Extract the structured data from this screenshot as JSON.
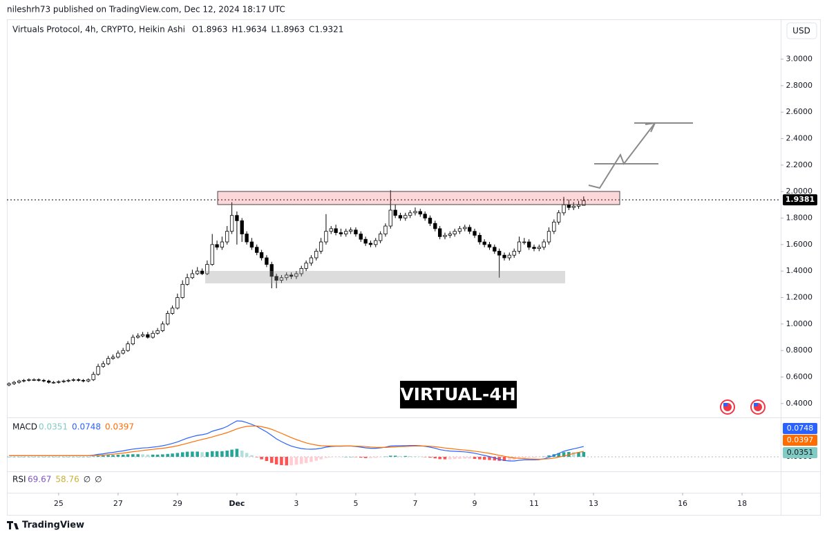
{
  "header": {
    "published": "nileshrh73 published on TradingView.com, Dec 12, 2024 18:17 UTC",
    "brand": "TradingView"
  },
  "chart_data": {
    "type": "candlestick",
    "legend": "Virtuals Protocol, 4h, CRYPTO, Heikin Ashi",
    "ohlc_labels": [
      "O1.8963",
      "H1.9634",
      "L1.8963",
      "C1.9321"
    ],
    "currency": "USD",
    "annotation": "VIRTUAL-4H",
    "up_color": "#ffffff",
    "down_color": "#000000",
    "edge_color": "#000000",
    "last_price": 1.9381,
    "xlim": [
      23.26,
      49.3
    ],
    "xticks": [
      25,
      27,
      29,
      {
        "value": 31,
        "label": "Dec"
      },
      {
        "value": 33,
        "label": "3"
      },
      {
        "value": 35,
        "label": "5"
      },
      {
        "value": 37,
        "label": "7"
      },
      {
        "value": 39,
        "label": "9"
      },
      {
        "value": 41,
        "label": "11"
      },
      {
        "value": 43,
        "label": "13"
      },
      {
        "value": 46,
        "label": "16"
      },
      {
        "value": 48,
        "label": "18"
      }
    ],
    "ylim": [
      0.3,
      3.29
    ],
    "yticks": [
      {
        "value": 0.4,
        "label": "0.4000"
      },
      {
        "value": 0.6,
        "label": "0.6000"
      },
      {
        "value": 0.8,
        "label": "0.8000"
      },
      {
        "value": 1.0,
        "label": "1.0000"
      },
      {
        "value": 1.2,
        "label": "1.2000"
      },
      {
        "value": 1.4,
        "label": "1.4000"
      },
      {
        "value": 1.6,
        "label": "1.6000"
      },
      {
        "value": 1.8,
        "label": "1.8000"
      },
      {
        "value": 2.0,
        "label": "2.0000"
      },
      {
        "value": 2.2,
        "label": "2.2000"
      },
      {
        "value": 2.4,
        "label": "2.4000"
      },
      {
        "value": 2.6,
        "label": "2.6000"
      },
      {
        "value": 2.8,
        "label": "2.8000"
      },
      {
        "value": 3.0,
        "label": "3.0000"
      }
    ],
    "x": [
      23.33,
      23.5,
      23.67,
      23.83,
      24,
      24.17,
      24.33,
      24.5,
      24.67,
      24.83,
      25,
      25.17,
      25.33,
      25.5,
      25.67,
      25.83,
      26,
      26.17,
      26.33,
      26.5,
      26.67,
      26.83,
      27,
      27.17,
      27.33,
      27.5,
      27.67,
      27.83,
      28,
      28.17,
      28.33,
      28.5,
      28.67,
      28.83,
      29,
      29.17,
      29.33,
      29.5,
      29.67,
      29.83,
      30,
      30.17,
      30.33,
      30.5,
      30.67,
      30.83,
      31,
      31.17,
      31.33,
      31.5,
      31.67,
      31.83,
      32,
      32.17,
      32.33,
      32.5,
      32.67,
      32.83,
      33,
      33.17,
      33.33,
      33.5,
      33.67,
      33.83,
      34,
      34.17,
      34.33,
      34.5,
      34.67,
      34.83,
      35,
      35.17,
      35.33,
      35.5,
      35.67,
      35.83,
      36,
      36.17,
      36.33,
      36.5,
      36.67,
      36.83,
      37,
      37.17,
      37.33,
      37.5,
      37.67,
      37.83,
      38,
      38.17,
      38.33,
      38.5,
      38.67,
      38.83,
      39,
      39.17,
      39.33,
      39.5,
      39.67,
      39.83,
      40,
      40.17,
      40.33,
      40.5,
      40.67,
      40.83,
      41,
      41.17,
      41.33,
      41.5,
      41.67,
      41.83,
      42,
      42.17,
      42.33,
      42.5,
      42.67
    ],
    "open": [
      0.54,
      0.55,
      0.56,
      0.57,
      0.575,
      0.58,
      0.58,
      0.575,
      0.57,
      0.56,
      0.56,
      0.565,
      0.57,
      0.575,
      0.58,
      0.575,
      0.57,
      0.58,
      0.62,
      0.68,
      0.7,
      0.74,
      0.75,
      0.78,
      0.8,
      0.85,
      0.9,
      0.91,
      0.92,
      0.9,
      0.93,
      0.95,
      1.0,
      1.08,
      1.12,
      1.2,
      1.3,
      1.35,
      1.38,
      1.4,
      1.38,
      1.45,
      1.6,
      1.58,
      1.62,
      1.7,
      1.82,
      1.78,
      1.68,
      1.62,
      1.58,
      1.54,
      1.5,
      1.45,
      1.36,
      1.33,
      1.35,
      1.37,
      1.36,
      1.38,
      1.42,
      1.46,
      1.5,
      1.55,
      1.62,
      1.7,
      1.72,
      1.69,
      1.68,
      1.7,
      1.71,
      1.68,
      1.64,
      1.61,
      1.6,
      1.63,
      1.68,
      1.74,
      1.86,
      1.82,
      1.8,
      1.82,
      1.84,
      1.85,
      1.83,
      1.8,
      1.76,
      1.72,
      1.66,
      1.67,
      1.68,
      1.7,
      1.72,
      1.73,
      1.7,
      1.67,
      1.62,
      1.6,
      1.58,
      1.55,
      1.52,
      1.5,
      1.52,
      1.55,
      1.62,
      1.62,
      1.58,
      1.57,
      1.58,
      1.62,
      1.7,
      1.77,
      1.84,
      1.9,
      1.88,
      1.89,
      1.8963
    ],
    "high": [
      0.56,
      0.57,
      0.58,
      0.585,
      0.59,
      0.59,
      0.59,
      0.585,
      0.58,
      0.57,
      0.575,
      0.58,
      0.585,
      0.59,
      0.59,
      0.585,
      0.59,
      0.64,
      0.7,
      0.72,
      0.76,
      0.77,
      0.8,
      0.82,
      0.87,
      0.92,
      0.93,
      0.94,
      0.94,
      0.95,
      0.97,
      1.02,
      1.1,
      1.14,
      1.23,
      1.33,
      1.38,
      1.41,
      1.43,
      1.42,
      1.48,
      1.68,
      1.63,
      1.66,
      1.74,
      1.92,
      1.85,
      1.8,
      1.7,
      1.65,
      1.6,
      1.56,
      1.52,
      1.47,
      1.38,
      1.37,
      1.39,
      1.39,
      1.4,
      1.44,
      1.48,
      1.52,
      1.57,
      1.65,
      1.83,
      1.74,
      1.75,
      1.72,
      1.72,
      1.73,
      1.73,
      1.7,
      1.66,
      1.63,
      1.65,
      1.7,
      1.76,
      2.01,
      1.9,
      1.84,
      1.84,
      1.86,
      1.88,
      1.87,
      1.85,
      1.82,
      1.78,
      1.74,
      1.69,
      1.7,
      1.72,
      1.74,
      1.75,
      1.75,
      1.72,
      1.69,
      1.64,
      1.62,
      1.6,
      1.57,
      1.54,
      1.54,
      1.57,
      1.66,
      1.65,
      1.64,
      1.6,
      1.6,
      1.64,
      1.73,
      1.79,
      1.86,
      1.96,
      1.94,
      1.92,
      1.93,
      1.9634
    ],
    "low": [
      0.53,
      0.54,
      0.55,
      0.56,
      0.565,
      0.57,
      0.565,
      0.56,
      0.55,
      0.55,
      0.55,
      0.555,
      0.56,
      0.565,
      0.565,
      0.56,
      0.56,
      0.57,
      0.61,
      0.67,
      0.69,
      0.73,
      0.74,
      0.77,
      0.79,
      0.84,
      0.89,
      0.9,
      0.89,
      0.89,
      0.92,
      0.94,
      0.99,
      1.07,
      1.11,
      1.19,
      1.29,
      1.34,
      1.37,
      1.37,
      1.37,
      1.44,
      1.56,
      1.56,
      1.6,
      1.68,
      1.6,
      1.62,
      1.6,
      1.56,
      1.52,
      1.48,
      1.43,
      1.27,
      1.27,
      1.31,
      1.33,
      1.34,
      1.34,
      1.36,
      1.4,
      1.44,
      1.48,
      1.53,
      1.6,
      1.68,
      1.67,
      1.66,
      1.66,
      1.68,
      1.66,
      1.62,
      1.59,
      1.58,
      1.58,
      1.61,
      1.66,
      1.72,
      1.8,
      1.78,
      1.78,
      1.8,
      1.82,
      1.81,
      1.78,
      1.74,
      1.7,
      1.64,
      1.64,
      1.65,
      1.66,
      1.68,
      1.7,
      1.68,
      1.65,
      1.6,
      1.58,
      1.56,
      1.53,
      1.35,
      1.48,
      1.48,
      1.5,
      1.53,
      1.6,
      1.56,
      1.55,
      1.55,
      1.56,
      1.6,
      1.68,
      1.75,
      1.82,
      1.86,
      1.86,
      1.87,
      1.8963
    ],
    "close": [
      0.55,
      0.56,
      0.57,
      0.575,
      0.58,
      0.58,
      0.575,
      0.57,
      0.56,
      0.56,
      0.565,
      0.57,
      0.575,
      0.58,
      0.575,
      0.57,
      0.58,
      0.62,
      0.68,
      0.7,
      0.74,
      0.75,
      0.78,
      0.8,
      0.85,
      0.9,
      0.91,
      0.92,
      0.9,
      0.93,
      0.95,
      1.0,
      1.08,
      1.12,
      1.2,
      1.3,
      1.35,
      1.38,
      1.4,
      1.38,
      1.45,
      1.6,
      1.58,
      1.62,
      1.7,
      1.82,
      1.78,
      1.68,
      1.62,
      1.58,
      1.54,
      1.5,
      1.45,
      1.36,
      1.33,
      1.35,
      1.37,
      1.36,
      1.38,
      1.42,
      1.46,
      1.5,
      1.55,
      1.62,
      1.7,
      1.72,
      1.69,
      1.68,
      1.7,
      1.71,
      1.68,
      1.64,
      1.61,
      1.6,
      1.63,
      1.68,
      1.74,
      1.86,
      1.82,
      1.8,
      1.82,
      1.84,
      1.85,
      1.83,
      1.8,
      1.76,
      1.72,
      1.66,
      1.67,
      1.68,
      1.7,
      1.72,
      1.73,
      1.7,
      1.67,
      1.62,
      1.6,
      1.58,
      1.55,
      1.52,
      1.5,
      1.52,
      1.55,
      1.62,
      1.62,
      1.58,
      1.57,
      1.58,
      1.62,
      1.7,
      1.77,
      1.84,
      1.9,
      1.88,
      1.89,
      1.9,
      1.9321
    ],
    "macd": {
      "label": "MACD",
      "legend_values": [
        0.0351,
        0.0748,
        0.0397
      ],
      "legend_colors": [
        "#80cbc4",
        "#2962ff",
        "#ff6d00"
      ],
      "ylim": [
        -0.1,
        0.275
      ],
      "yticks": [
        {
          "value": 0,
          "label": "0.0000"
        }
      ],
      "series": [
        {
          "type": "bar",
          "colors": [
            "#26a69a",
            "#b2dfdb",
            "#ff5252",
            "#ffcdd2"
          ],
          "values": [
            0,
            0,
            0,
            0,
            0,
            0,
            0,
            0,
            0,
            0,
            0,
            0,
            0,
            0,
            0,
            0,
            0,
            0.003,
            0.007,
            0.009,
            0.012,
            0.013,
            0.015,
            0.016,
            0.018,
            0.019,
            0.019,
            0.018,
            0.016,
            0.016,
            0.016,
            0.018,
            0.021,
            0.024,
            0.028,
            0.033,
            0.037,
            0.038,
            0.038,
            0.034,
            0.034,
            0.041,
            0.041,
            0.041,
            0.045,
            0.052,
            0.058,
            0.045,
            0.028,
            0.012,
            -0.003,
            -0.018,
            -0.03,
            -0.044,
            -0.055,
            -0.06,
            -0.062,
            -0.061,
            -0.057,
            -0.052,
            -0.045,
            -0.037,
            -0.028,
            -0.018,
            -0.008,
            -0.003,
            -0.001,
            -0.001,
            0,
            0,
            -0.002,
            -0.006,
            -0.009,
            -0.009,
            -0.007,
            -0.003,
            0.002,
            0.008,
            0.008,
            0.006,
            0.006,
            0.005,
            0.004,
            0.002,
            -0.002,
            -0.006,
            -0.011,
            -0.017,
            -0.018,
            -0.018,
            -0.016,
            -0.014,
            -0.013,
            -0.013,
            -0.015,
            -0.018,
            -0.021,
            -0.023,
            -0.026,
            -0.029,
            -0.03,
            -0.027,
            -0.022,
            -0.014,
            -0.009,
            -0.007,
            -0.006,
            -0.003,
            0.002,
            0.01,
            0.019,
            0.027,
            0.034,
            0.035,
            0.034,
            0.034,
            0.0351
          ]
        },
        {
          "type": "line",
          "color": "#2962ff",
          "values": [
            0.008,
            0.008,
            0.008,
            0.008,
            0.008,
            0.008,
            0.008,
            0.008,
            0.008,
            0.008,
            0.008,
            0.008,
            0.008,
            0.008,
            0.008,
            0.008,
            0.008,
            0.012,
            0.018,
            0.022,
            0.028,
            0.032,
            0.038,
            0.043,
            0.05,
            0.056,
            0.06,
            0.064,
            0.066,
            0.07,
            0.074,
            0.08,
            0.088,
            0.097,
            0.108,
            0.122,
            0.135,
            0.146,
            0.155,
            0.16,
            0.168,
            0.185,
            0.195,
            0.205,
            0.22,
            0.24,
            0.26,
            0.258,
            0.248,
            0.235,
            0.22,
            0.2,
            0.18,
            0.155,
            0.13,
            0.11,
            0.092,
            0.078,
            0.068,
            0.06,
            0.056,
            0.055,
            0.057,
            0.062,
            0.07,
            0.075,
            0.077,
            0.077,
            0.078,
            0.078,
            0.075,
            0.07,
            0.065,
            0.062,
            0.062,
            0.065,
            0.07,
            0.078,
            0.08,
            0.08,
            0.081,
            0.082,
            0.082,
            0.08,
            0.076,
            0.07,
            0.062,
            0.052,
            0.046,
            0.042,
            0.04,
            0.038,
            0.036,
            0.032,
            0.026,
            0.018,
            0.01,
            0.002,
            -0.008,
            -0.018,
            -0.026,
            -0.03,
            -0.03,
            -0.025,
            -0.022,
            -0.022,
            -0.022,
            -0.02,
            -0.014,
            -0.004,
            0.01,
            0.025,
            0.04,
            0.05,
            0.058,
            0.066,
            0.0748
          ]
        },
        {
          "type": "line",
          "color": "#ff6d00",
          "values": [
            0.008,
            0.008,
            0.008,
            0.008,
            0.008,
            0.008,
            0.008,
            0.008,
            0.008,
            0.008,
            0.008,
            0.008,
            0.008,
            0.008,
            0.008,
            0.008,
            0.008,
            0.009,
            0.011,
            0.013,
            0.016,
            0.019,
            0.023,
            0.027,
            0.032,
            0.037,
            0.041,
            0.046,
            0.05,
            0.054,
            0.058,
            0.062,
            0.067,
            0.073,
            0.08,
            0.089,
            0.098,
            0.108,
            0.117,
            0.126,
            0.134,
            0.144,
            0.154,
            0.164,
            0.175,
            0.188,
            0.202,
            0.213,
            0.22,
            0.223,
            0.223,
            0.218,
            0.21,
            0.199,
            0.185,
            0.17,
            0.154,
            0.139,
            0.125,
            0.112,
            0.101,
            0.092,
            0.085,
            0.08,
            0.078,
            0.078,
            0.078,
            0.078,
            0.078,
            0.078,
            0.077,
            0.076,
            0.074,
            0.071,
            0.069,
            0.068,
            0.068,
            0.07,
            0.072,
            0.074,
            0.075,
            0.077,
            0.078,
            0.078,
            0.078,
            0.076,
            0.073,
            0.069,
            0.064,
            0.06,
            0.056,
            0.052,
            0.049,
            0.045,
            0.041,
            0.036,
            0.031,
            0.025,
            0.018,
            0.011,
            0.004,
            -0.003,
            -0.008,
            -0.011,
            -0.013,
            -0.015,
            -0.016,
            -0.017,
            -0.016,
            -0.014,
            -0.009,
            -0.002,
            0.006,
            0.015,
            0.024,
            0.032,
            0.0397
          ]
        }
      ]
    },
    "rsi": {
      "label": "RSI",
      "values": [
        69.67,
        58.76
      ],
      "colors": [
        "#7e57c2",
        "#c9b037"
      ],
      "extra": [
        "∅",
        "∅"
      ]
    }
  }
}
